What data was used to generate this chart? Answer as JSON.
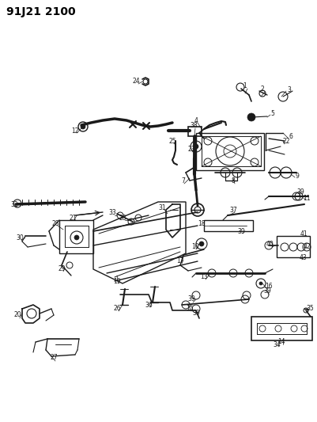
{
  "title": "91J21 2100",
  "bg_color": "#ffffff",
  "line_color": "#1a1a1a",
  "fig_width": 4.02,
  "fig_height": 5.33,
  "dpi": 100
}
